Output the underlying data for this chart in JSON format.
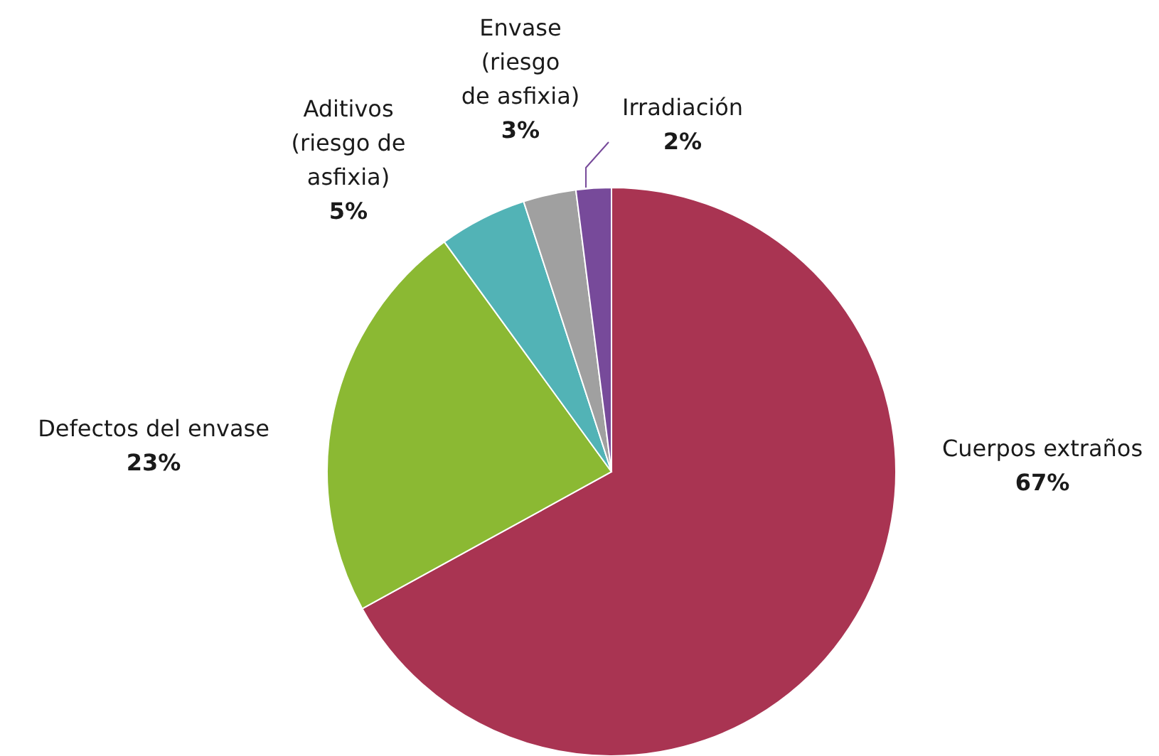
{
  "chart_data": {
    "type": "pie",
    "categories": [
      "Cuerpos extraños",
      "Defectos del envase",
      "Aditivos (riesgo de asfixia)",
      "Envase (riesgo de asfixia)",
      "Irradiación"
    ],
    "values": [
      67,
      23,
      5,
      3,
      2
    ],
    "value_labels": [
      "67%",
      "23%",
      "5%",
      "3%",
      "2%"
    ],
    "colors": [
      "#a93452",
      "#8bb933",
      "#52b3b6",
      "#a0a0a0",
      "#774a9a"
    ]
  }
}
